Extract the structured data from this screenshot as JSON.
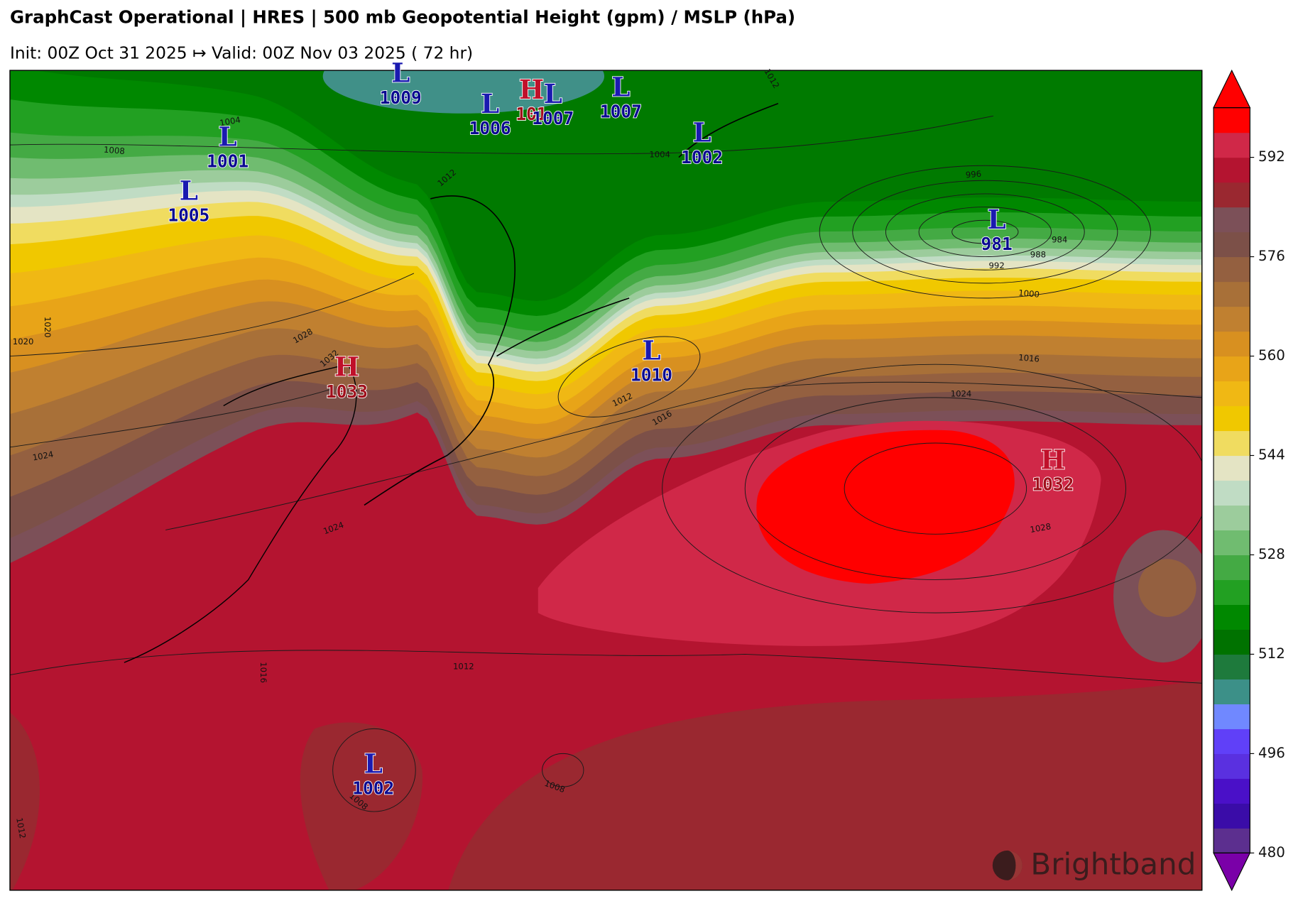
{
  "header": {
    "title": "GraphCast Operational | HRES | 500 mb Geopotential Height (gpm) / MSLP (hPa)",
    "subtitle": "Init: 00Z Oct 31 2025 ↦ Valid: 00Z Nov 03 2025 ( 72 hr)"
  },
  "pressure_centers": [
    {
      "symbol": "L",
      "value": 1009
    },
    {
      "symbol": "H",
      "value": "101"
    },
    {
      "symbol": "L",
      "value": 1007
    },
    {
      "symbol": "L",
      "value": 1006
    },
    {
      "symbol": "L",
      "value": 1007
    },
    {
      "symbol": "L",
      "value": 1002
    },
    {
      "symbol": "L",
      "value": 1001
    },
    {
      "symbol": "L",
      "value": 1005
    },
    {
      "symbol": "L",
      "value": 981
    },
    {
      "symbol": "L",
      "value": 1010
    },
    {
      "symbol": "H",
      "value": 1033
    },
    {
      "symbol": "H",
      "value": 1032
    },
    {
      "symbol": "L",
      "value": 1002
    }
  ],
  "contour_labels": [
    1008,
    1004,
    1012,
    1004,
    1012,
    996,
    984,
    988,
    992,
    1000,
    1016,
    1024,
    1012,
    1016,
    1028,
    1032,
    1020,
    1020,
    1024,
    1024,
    1028,
    1012,
    1016,
    1008,
    1008,
    1012
  ],
  "colorbar": {
    "lim": [
      480,
      600
    ],
    "ticks": [
      480,
      496,
      512,
      528,
      544,
      560,
      576,
      592
    ],
    "colors": [
      "#5c2f8f",
      "#3a0ca8",
      "#4a10c8",
      "#5a30e0",
      "#6040f8",
      "#7088ff",
      "#3c9088",
      "#1e7a3c",
      "#007200",
      "#008800",
      "#22a022",
      "#44aa44",
      "#70bc70",
      "#9ccc9c",
      "#c0dcc4",
      "#e4e4c4",
      "#f0dc60",
      "#f0c800",
      "#f0b814",
      "#e8a418",
      "#d89020",
      "#c08030",
      "#a87038",
      "#946040",
      "#7c5048",
      "#7c5058",
      "#9a2830",
      "#b41430",
      "#d02848",
      "#ff0000"
    ],
    "under_color": "#7a00a8",
    "over_color": "#ff0000"
  },
  "logo": "Brightband"
}
